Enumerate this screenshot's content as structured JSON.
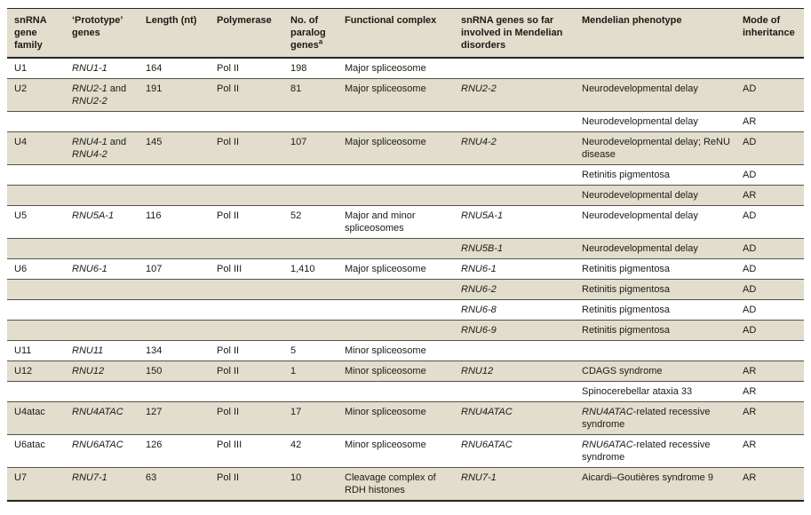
{
  "colors": {
    "row_shade": "#e2ddcc",
    "row_rule": "#54524a",
    "table_frame": "#26251f",
    "text": "#1b1a17",
    "background": "#ffffff"
  },
  "table": {
    "header": {
      "cells": [
        {
          "segs": [
            {
              "t": "snRNA gene family"
            }
          ]
        },
        {
          "segs": [
            {
              "t": "‘Prototype’ genes"
            }
          ]
        },
        {
          "segs": [
            {
              "t": "Length (nt)"
            }
          ]
        },
        {
          "segs": [
            {
              "t": "Polymerase"
            }
          ]
        },
        {
          "segs": [
            {
              "t": "No. of paralog genes"
            },
            {
              "t": "a",
              "sup": true
            }
          ]
        },
        {
          "segs": [
            {
              "t": "Functional complex"
            }
          ]
        },
        {
          "segs": [
            {
              "t": "snRNA genes so far involved in Mendelian disorders"
            }
          ]
        },
        {
          "segs": [
            {
              "t": "Mendelian phenotype"
            }
          ]
        },
        {
          "segs": [
            {
              "t": "Mode of inheritance"
            }
          ]
        }
      ]
    },
    "rows": [
      {
        "shade": false,
        "cells": [
          {
            "segs": [
              {
                "t": "U1"
              }
            ]
          },
          {
            "segs": [
              {
                "t": "RNU1-1",
                "i": true
              }
            ]
          },
          {
            "segs": [
              {
                "t": "164"
              }
            ]
          },
          {
            "segs": [
              {
                "t": "Pol II"
              }
            ]
          },
          {
            "segs": [
              {
                "t": "198"
              }
            ]
          },
          {
            "segs": [
              {
                "t": "Major spliceosome"
              }
            ]
          },
          {
            "segs": []
          },
          {
            "segs": []
          },
          {
            "segs": []
          }
        ]
      },
      {
        "shade": true,
        "cells": [
          {
            "segs": [
              {
                "t": "U2"
              }
            ]
          },
          {
            "segs": [
              {
                "t": "RNU2-1",
                "i": true
              },
              {
                "t": " and "
              },
              {
                "t": "RNU2-2",
                "i": true
              }
            ]
          },
          {
            "segs": [
              {
                "t": "191"
              }
            ]
          },
          {
            "segs": [
              {
                "t": "Pol II"
              }
            ]
          },
          {
            "segs": [
              {
                "t": "81"
              }
            ]
          },
          {
            "segs": [
              {
                "t": "Major spliceosome"
              }
            ]
          },
          {
            "segs": [
              {
                "t": "RNU2-2",
                "i": true
              }
            ]
          },
          {
            "segs": [
              {
                "t": "Neurodevelopmental delay"
              }
            ]
          },
          {
            "segs": [
              {
                "t": "AD"
              }
            ]
          }
        ]
      },
      {
        "shade": false,
        "cells": [
          {
            "segs": []
          },
          {
            "segs": []
          },
          {
            "segs": []
          },
          {
            "segs": []
          },
          {
            "segs": []
          },
          {
            "segs": []
          },
          {
            "segs": []
          },
          {
            "segs": [
              {
                "t": "Neurodevelopmental delay"
              }
            ]
          },
          {
            "segs": [
              {
                "t": "AR"
              }
            ]
          }
        ]
      },
      {
        "shade": true,
        "cells": [
          {
            "segs": [
              {
                "t": "U4"
              }
            ]
          },
          {
            "segs": [
              {
                "t": "RNU4-1",
                "i": true
              },
              {
                "t": " and "
              },
              {
                "t": "RNU4-2",
                "i": true
              }
            ]
          },
          {
            "segs": [
              {
                "t": "145"
              }
            ]
          },
          {
            "segs": [
              {
                "t": "Pol II"
              }
            ]
          },
          {
            "segs": [
              {
                "t": "107"
              }
            ]
          },
          {
            "segs": [
              {
                "t": "Major spliceosome"
              }
            ]
          },
          {
            "segs": [
              {
                "t": "RNU4-2",
                "i": true
              }
            ]
          },
          {
            "segs": [
              {
                "t": "Neurodevelopmental delay; ReNU disease"
              }
            ]
          },
          {
            "segs": [
              {
                "t": "AD"
              }
            ]
          }
        ]
      },
      {
        "shade": false,
        "cells": [
          {
            "segs": []
          },
          {
            "segs": []
          },
          {
            "segs": []
          },
          {
            "segs": []
          },
          {
            "segs": []
          },
          {
            "segs": []
          },
          {
            "segs": []
          },
          {
            "segs": [
              {
                "t": "Retinitis pigmentosa"
              }
            ]
          },
          {
            "segs": [
              {
                "t": "AD"
              }
            ]
          }
        ]
      },
      {
        "shade": true,
        "cells": [
          {
            "segs": []
          },
          {
            "segs": []
          },
          {
            "segs": []
          },
          {
            "segs": []
          },
          {
            "segs": []
          },
          {
            "segs": []
          },
          {
            "segs": []
          },
          {
            "segs": [
              {
                "t": "Neurodevelopmental delay"
              }
            ]
          },
          {
            "segs": [
              {
                "t": "AR"
              }
            ]
          }
        ]
      },
      {
        "shade": false,
        "cells": [
          {
            "segs": [
              {
                "t": "U5"
              }
            ]
          },
          {
            "segs": [
              {
                "t": "RNU5A-1",
                "i": true
              }
            ]
          },
          {
            "segs": [
              {
                "t": "116"
              }
            ]
          },
          {
            "segs": [
              {
                "t": "Pol II"
              }
            ]
          },
          {
            "segs": [
              {
                "t": "52"
              }
            ]
          },
          {
            "segs": [
              {
                "t": "Major and minor spliceosomes"
              }
            ]
          },
          {
            "segs": [
              {
                "t": "RNU5A-1",
                "i": true
              }
            ]
          },
          {
            "segs": [
              {
                "t": "Neurodevelopmental delay"
              }
            ]
          },
          {
            "segs": [
              {
                "t": "AD"
              }
            ]
          }
        ]
      },
      {
        "shade": true,
        "cells": [
          {
            "segs": []
          },
          {
            "segs": []
          },
          {
            "segs": []
          },
          {
            "segs": []
          },
          {
            "segs": []
          },
          {
            "segs": []
          },
          {
            "segs": [
              {
                "t": "RNU5B-1",
                "i": true
              }
            ]
          },
          {
            "segs": [
              {
                "t": "Neurodevelopmental delay"
              }
            ]
          },
          {
            "segs": [
              {
                "t": "AD"
              }
            ]
          }
        ]
      },
      {
        "shade": false,
        "cells": [
          {
            "segs": [
              {
                "t": "U6"
              }
            ]
          },
          {
            "segs": [
              {
                "t": "RNU6-1",
                "i": true
              }
            ]
          },
          {
            "segs": [
              {
                "t": "107"
              }
            ]
          },
          {
            "segs": [
              {
                "t": "Pol III"
              }
            ]
          },
          {
            "segs": [
              {
                "t": "1,410"
              }
            ]
          },
          {
            "segs": [
              {
                "t": "Major spliceosome"
              }
            ]
          },
          {
            "segs": [
              {
                "t": "RNU6-1",
                "i": true
              }
            ]
          },
          {
            "segs": [
              {
                "t": "Retinitis pigmentosa"
              }
            ]
          },
          {
            "segs": [
              {
                "t": "AD"
              }
            ]
          }
        ]
      },
      {
        "shade": true,
        "cells": [
          {
            "segs": []
          },
          {
            "segs": []
          },
          {
            "segs": []
          },
          {
            "segs": []
          },
          {
            "segs": []
          },
          {
            "segs": []
          },
          {
            "segs": [
              {
                "t": "RNU6-2",
                "i": true
              }
            ]
          },
          {
            "segs": [
              {
                "t": "Retinitis pigmentosa"
              }
            ]
          },
          {
            "segs": [
              {
                "t": "AD"
              }
            ]
          }
        ]
      },
      {
        "shade": false,
        "cells": [
          {
            "segs": []
          },
          {
            "segs": []
          },
          {
            "segs": []
          },
          {
            "segs": []
          },
          {
            "segs": []
          },
          {
            "segs": []
          },
          {
            "segs": [
              {
                "t": "RNU6-8",
                "i": true
              }
            ]
          },
          {
            "segs": [
              {
                "t": "Retinitis pigmentosa"
              }
            ]
          },
          {
            "segs": [
              {
                "t": "AD"
              }
            ]
          }
        ]
      },
      {
        "shade": true,
        "cells": [
          {
            "segs": []
          },
          {
            "segs": []
          },
          {
            "segs": []
          },
          {
            "segs": []
          },
          {
            "segs": []
          },
          {
            "segs": []
          },
          {
            "segs": [
              {
                "t": "RNU6-9",
                "i": true
              }
            ]
          },
          {
            "segs": [
              {
                "t": "Retinitis pigmentosa"
              }
            ]
          },
          {
            "segs": [
              {
                "t": "AD"
              }
            ]
          }
        ]
      },
      {
        "shade": false,
        "cells": [
          {
            "segs": [
              {
                "t": "U11"
              }
            ]
          },
          {
            "segs": [
              {
                "t": "RNU11",
                "i": true
              }
            ]
          },
          {
            "segs": [
              {
                "t": "134"
              }
            ]
          },
          {
            "segs": [
              {
                "t": "Pol II"
              }
            ]
          },
          {
            "segs": [
              {
                "t": "5"
              }
            ]
          },
          {
            "segs": [
              {
                "t": "Minor spliceosome"
              }
            ]
          },
          {
            "segs": []
          },
          {
            "segs": []
          },
          {
            "segs": []
          }
        ]
      },
      {
        "shade": true,
        "cells": [
          {
            "segs": [
              {
                "t": "U12"
              }
            ]
          },
          {
            "segs": [
              {
                "t": "RNU12",
                "i": true
              }
            ]
          },
          {
            "segs": [
              {
                "t": "150"
              }
            ]
          },
          {
            "segs": [
              {
                "t": "Pol II"
              }
            ]
          },
          {
            "segs": [
              {
                "t": "1"
              }
            ]
          },
          {
            "segs": [
              {
                "t": "Minor spliceosome"
              }
            ]
          },
          {
            "segs": [
              {
                "t": "RNU12",
                "i": true
              }
            ]
          },
          {
            "segs": [
              {
                "t": "CDAGS syndrome"
              }
            ]
          },
          {
            "segs": [
              {
                "t": "AR"
              }
            ]
          }
        ]
      },
      {
        "shade": false,
        "cells": [
          {
            "segs": []
          },
          {
            "segs": []
          },
          {
            "segs": []
          },
          {
            "segs": []
          },
          {
            "segs": []
          },
          {
            "segs": []
          },
          {
            "segs": []
          },
          {
            "segs": [
              {
                "t": "Spinocerebellar ataxia 33"
              }
            ]
          },
          {
            "segs": [
              {
                "t": "AR"
              }
            ]
          }
        ]
      },
      {
        "shade": true,
        "cells": [
          {
            "segs": [
              {
                "t": "U4atac"
              }
            ]
          },
          {
            "segs": [
              {
                "t": "RNU4ATAC",
                "i": true
              }
            ]
          },
          {
            "segs": [
              {
                "t": "127"
              }
            ]
          },
          {
            "segs": [
              {
                "t": "Pol II"
              }
            ]
          },
          {
            "segs": [
              {
                "t": "17"
              }
            ]
          },
          {
            "segs": [
              {
                "t": "Minor spliceosome"
              }
            ]
          },
          {
            "segs": [
              {
                "t": "RNU4ATAC",
                "i": true
              }
            ]
          },
          {
            "segs": [
              {
                "t": "RNU4ATAC",
                "i": true
              },
              {
                "t": "-related recessive syndrome"
              }
            ]
          },
          {
            "segs": [
              {
                "t": "AR"
              }
            ]
          }
        ]
      },
      {
        "shade": false,
        "cells": [
          {
            "segs": [
              {
                "t": "U6atac"
              }
            ]
          },
          {
            "segs": [
              {
                "t": "RNU6ATAC",
                "i": true
              }
            ]
          },
          {
            "segs": [
              {
                "t": "126"
              }
            ]
          },
          {
            "segs": [
              {
                "t": "Pol III"
              }
            ]
          },
          {
            "segs": [
              {
                "t": "42"
              }
            ]
          },
          {
            "segs": [
              {
                "t": "Minor spliceosome"
              }
            ]
          },
          {
            "segs": [
              {
                "t": "RNU6ATAC",
                "i": true
              }
            ]
          },
          {
            "segs": [
              {
                "t": "RNU6ATAC",
                "i": true
              },
              {
                "t": "-related recessive syndrome"
              }
            ]
          },
          {
            "segs": [
              {
                "t": "AR"
              }
            ]
          }
        ]
      },
      {
        "shade": true,
        "cells": [
          {
            "segs": [
              {
                "t": "U7"
              }
            ]
          },
          {
            "segs": [
              {
                "t": "RNU7-1",
                "i": true
              }
            ]
          },
          {
            "segs": [
              {
                "t": "63"
              }
            ]
          },
          {
            "segs": [
              {
                "t": "Pol II"
              }
            ]
          },
          {
            "segs": [
              {
                "t": "10"
              }
            ]
          },
          {
            "segs": [
              {
                "t": "Cleavage complex of RDH histones"
              }
            ]
          },
          {
            "segs": [
              {
                "t": "RNU7-1",
                "i": true
              }
            ]
          },
          {
            "segs": [
              {
                "t": "Aicardi–Goutières syndrome 9"
              }
            ]
          },
          {
            "segs": [
              {
                "t": "AR"
              }
            ]
          }
        ]
      }
    ]
  }
}
